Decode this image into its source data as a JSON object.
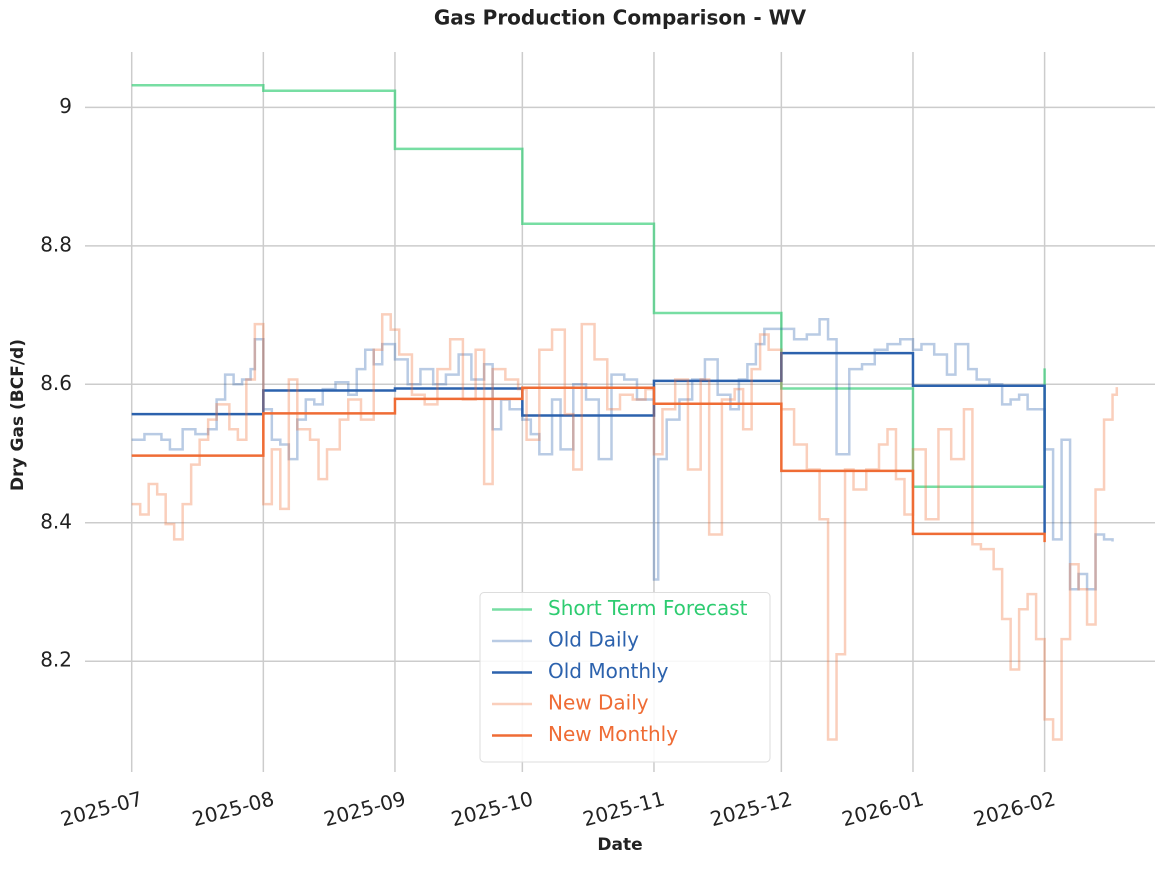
{
  "chart_data": {
    "type": "line",
    "step": "post",
    "title": "Gas Production Comparison - WV",
    "x_label": "Date",
    "y_label": "Dry Gas (BCF/d)",
    "xlim": [
      "2025-06-20",
      "2026-02-27"
    ],
    "ylim": [
      8.04,
      9.08
    ],
    "xticks": [
      "2025-07",
      "2025-08",
      "2025-09",
      "2025-10",
      "2025-11",
      "2025-12",
      "2026-01",
      "2026-02"
    ],
    "yticks": [
      9,
      8.8,
      8.6,
      8.4,
      8.2
    ],
    "grid": true,
    "legend": "lower center",
    "series": [
      {
        "name": "Short Term Forecast",
        "color": "#2ecc71",
        "alpha": 0.65,
        "x": [
          "2025-07-01",
          "2025-08-01",
          "2025-09-01",
          "2025-10-01",
          "2025-11-01",
          "2025-12-01",
          "2026-01-01",
          "2026-02-01"
        ],
        "values": [
          9.032,
          9.024,
          8.94,
          8.832,
          8.703,
          8.594,
          8.452,
          8.623
        ]
      },
      {
        "name": "Old Daily",
        "color": "#2c62ad",
        "alpha": 0.33,
        "x": [
          "2025-07-01",
          "2025-07-04",
          "2025-07-08",
          "2025-07-10",
          "2025-07-13",
          "2025-07-16",
          "2025-07-19",
          "2025-07-21",
          "2025-07-23",
          "2025-07-25",
          "2025-07-27",
          "2025-07-29",
          "2025-07-30",
          "2025-08-01",
          "2025-08-03",
          "2025-08-05",
          "2025-08-07",
          "2025-08-09",
          "2025-08-11",
          "2025-08-13",
          "2025-08-15",
          "2025-08-18",
          "2025-08-21",
          "2025-08-23",
          "2025-08-25",
          "2025-08-27",
          "2025-08-29",
          "2025-09-01",
          "2025-09-04",
          "2025-09-07",
          "2025-09-10",
          "2025-09-13",
          "2025-09-16",
          "2025-09-19",
          "2025-09-22",
          "2025-09-24",
          "2025-09-26",
          "2025-09-28",
          "2025-10-01",
          "2025-10-03",
          "2025-10-05",
          "2025-10-08",
          "2025-10-10",
          "2025-10-13",
          "2025-10-16",
          "2025-10-19",
          "2025-10-22",
          "2025-10-25",
          "2025-10-28",
          "2025-10-30",
          "2025-11-01",
          "2025-11-02",
          "2025-11-04",
          "2025-11-07",
          "2025-11-10",
          "2025-11-13",
          "2025-11-16",
          "2025-11-19",
          "2025-11-21",
          "2025-11-23",
          "2025-11-25",
          "2025-11-27",
          "2025-12-01",
          "2025-12-04",
          "2025-12-07",
          "2025-12-10",
          "2025-12-12",
          "2025-12-14",
          "2025-12-17",
          "2025-12-20",
          "2025-12-23",
          "2025-12-26",
          "2025-12-29",
          "2026-01-01",
          "2026-01-03",
          "2026-01-06",
          "2026-01-09",
          "2026-01-11",
          "2026-01-14",
          "2026-01-16",
          "2026-01-19",
          "2026-01-22",
          "2026-01-24",
          "2026-01-26",
          "2026-01-28",
          "2026-02-01",
          "2026-02-03",
          "2026-02-05",
          "2026-02-07",
          "2026-02-09",
          "2026-02-11",
          "2026-02-13",
          "2026-02-15",
          "2026-02-17"
        ],
        "values": [
          8.52,
          8.528,
          8.52,
          8.506,
          8.535,
          8.528,
          8.535,
          8.578,
          8.614,
          8.6,
          8.607,
          8.622,
          8.665,
          8.564,
          8.52,
          8.513,
          8.492,
          8.549,
          8.578,
          8.571,
          8.593,
          8.603,
          8.585,
          8.622,
          8.65,
          8.629,
          8.658,
          8.636,
          8.6,
          8.622,
          8.6,
          8.614,
          8.643,
          8.607,
          8.629,
          8.535,
          8.578,
          8.564,
          8.549,
          8.528,
          8.499,
          8.578,
          8.506,
          8.6,
          8.578,
          8.492,
          8.614,
          8.607,
          8.578,
          8.578,
          8.318,
          8.492,
          8.549,
          8.578,
          8.607,
          8.636,
          8.585,
          8.564,
          8.607,
          8.629,
          8.658,
          8.68,
          8.68,
          8.665,
          8.672,
          8.694,
          8.665,
          8.499,
          8.622,
          8.629,
          8.65,
          8.658,
          8.665,
          8.65,
          8.658,
          8.643,
          8.614,
          8.658,
          8.622,
          8.607,
          8.6,
          8.571,
          8.578,
          8.585,
          8.564,
          8.506,
          8.376,
          8.52,
          8.304,
          8.326,
          8.304,
          8.383,
          8.376,
          8.373
        ]
      },
      {
        "name": "Old Monthly",
        "color": "#2c62ad",
        "alpha": 1,
        "x": [
          "2025-07-01",
          "2025-08-01",
          "2025-09-01",
          "2025-10-01",
          "2025-11-01",
          "2025-12-01",
          "2026-01-01",
          "2026-02-01"
        ],
        "values": [
          8.557,
          8.591,
          8.594,
          8.555,
          8.605,
          8.645,
          8.598,
          8.385
        ]
      },
      {
        "name": "New Daily",
        "color": "#ef6c35",
        "alpha": 0.33,
        "x": [
          "2025-07-01",
          "2025-07-03",
          "2025-07-05",
          "2025-07-07",
          "2025-07-09",
          "2025-07-11",
          "2025-07-13",
          "2025-07-15",
          "2025-07-17",
          "2025-07-19",
          "2025-07-21",
          "2025-07-24",
          "2025-07-26",
          "2025-07-28",
          "2025-07-30",
          "2025-08-01",
          "2025-08-03",
          "2025-08-05",
          "2025-08-07",
          "2025-08-09",
          "2025-08-12",
          "2025-08-14",
          "2025-08-16",
          "2025-08-19",
          "2025-08-21",
          "2025-08-24",
          "2025-08-27",
          "2025-08-29",
          "2025-08-31",
          "2025-09-02",
          "2025-09-05",
          "2025-09-08",
          "2025-09-11",
          "2025-09-14",
          "2025-09-17",
          "2025-09-20",
          "2025-09-22",
          "2025-09-24",
          "2025-09-27",
          "2025-09-30",
          "2025-10-02",
          "2025-10-05",
          "2025-10-08",
          "2025-10-11",
          "2025-10-13",
          "2025-10-15",
          "2025-10-18",
          "2025-10-21",
          "2025-10-24",
          "2025-10-27",
          "2025-10-30",
          "2025-11-01",
          "2025-11-03",
          "2025-11-06",
          "2025-11-09",
          "2025-11-12",
          "2025-11-14",
          "2025-11-17",
          "2025-11-20",
          "2025-11-22",
          "2025-11-24",
          "2025-11-26",
          "2025-11-28",
          "2025-12-01",
          "2025-12-04",
          "2025-12-07",
          "2025-12-10",
          "2025-12-12",
          "2025-12-14",
          "2025-12-16",
          "2025-12-18",
          "2025-12-21",
          "2025-12-24",
          "2025-12-26",
          "2025-12-28",
          "2025-12-30",
          "2026-01-01",
          "2026-01-04",
          "2026-01-07",
          "2026-01-10",
          "2026-01-13",
          "2026-01-15",
          "2026-01-17",
          "2026-01-20",
          "2026-01-22",
          "2026-01-24",
          "2026-01-26",
          "2026-01-28",
          "2026-01-30",
          "2026-02-01",
          "2026-02-03",
          "2026-02-05",
          "2026-02-07",
          "2026-02-09",
          "2026-02-11",
          "2026-02-13",
          "2026-02-15",
          "2026-02-17",
          "2026-02-18"
        ],
        "values": [
          8.427,
          8.412,
          8.456,
          8.441,
          8.398,
          8.376,
          8.427,
          8.484,
          8.52,
          8.549,
          8.571,
          8.535,
          8.52,
          8.607,
          8.687,
          8.427,
          8.506,
          8.42,
          8.607,
          8.535,
          8.52,
          8.463,
          8.506,
          8.549,
          8.578,
          8.549,
          8.65,
          8.701,
          8.679,
          8.643,
          8.585,
          8.571,
          8.622,
          8.665,
          8.578,
          8.65,
          8.456,
          8.622,
          8.607,
          8.593,
          8.52,
          8.65,
          8.679,
          8.557,
          8.477,
          8.687,
          8.636,
          8.564,
          8.585,
          8.578,
          8.593,
          8.499,
          8.564,
          8.607,
          8.477,
          8.607,
          8.383,
          8.578,
          8.593,
          8.535,
          8.622,
          8.672,
          8.65,
          8.564,
          8.513,
          8.477,
          8.405,
          8.087,
          8.21,
          8.477,
          8.448,
          8.477,
          8.513,
          8.535,
          8.463,
          8.412,
          8.506,
          8.405,
          8.535,
          8.492,
          8.564,
          8.369,
          8.362,
          8.333,
          8.261,
          8.188,
          8.275,
          8.297,
          8.232,
          8.116,
          8.087,
          8.232,
          8.34,
          8.304,
          8.253,
          8.448,
          8.549,
          8.585,
          8.596
        ]
      },
      {
        "name": "New Monthly",
        "color": "#ef6c35",
        "alpha": 1,
        "x": [
          "2025-07-01",
          "2025-08-01",
          "2025-09-01",
          "2025-10-01",
          "2025-11-01",
          "2025-12-01",
          "2026-01-01",
          "2026-02-01"
        ],
        "values": [
          8.497,
          8.558,
          8.579,
          8.595,
          8.572,
          8.475,
          8.384,
          8.372
        ]
      }
    ]
  }
}
